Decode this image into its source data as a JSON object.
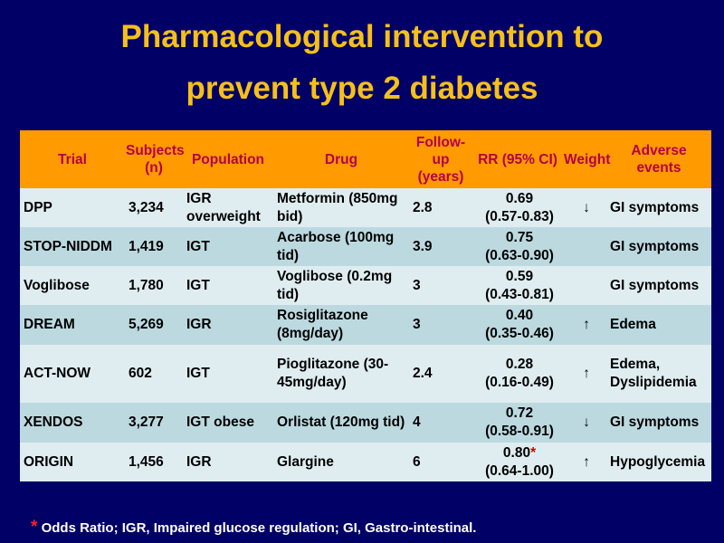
{
  "title": {
    "line1": "Pharmacological intervention to",
    "line2": "prevent type 2 diabetes"
  },
  "table": {
    "headers": {
      "trial": "Trial",
      "subjects": "Subjects (n)",
      "population": "Population",
      "drug": "Drug",
      "followup": "Follow-up (years)",
      "rr": "RR (95% CI)",
      "weight": "Weight",
      "adverse": "Adverse events"
    },
    "rows": [
      {
        "trial": "DPP",
        "subjects": "3,234",
        "population": "IGR overweight",
        "drug": "Metformin (850mg bid)",
        "followup": "2.8",
        "rr": "0.69",
        "rr_marker": "",
        "ci": "(0.57-0.83)",
        "weight": "↓",
        "adverse": "GI symptoms"
      },
      {
        "trial": "STOP-NIDDM",
        "subjects": "1,419",
        "population": "IGT",
        "drug": "Acarbose (100mg tid)",
        "followup": "3.9",
        "rr": "0.75",
        "rr_marker": "",
        "ci": "(0.63-0.90)",
        "weight": "",
        "adverse": "GI symptoms"
      },
      {
        "trial": "Voglibose",
        "subjects": "1,780",
        "population": "IGT",
        "drug": "Voglibose (0.2mg tid)",
        "followup": "3",
        "rr": "0.59",
        "rr_marker": "",
        "ci": "(0.43-0.81)",
        "weight": "",
        "adverse": "GI symptoms"
      },
      {
        "trial": "DREAM",
        "subjects": "5,269",
        "population": "IGR",
        "drug": "Rosiglitazone (8mg/day)",
        "followup": "3",
        "rr": "0.40",
        "rr_marker": "",
        "ci": "(0.35-0.46)",
        "weight": "↑",
        "adverse": "Edema"
      },
      {
        "trial": "ACT-NOW",
        "subjects": "602",
        "population": "IGT",
        "drug": "Pioglitazone (30-45mg/day)",
        "followup": "2.4",
        "rr": "0.28",
        "rr_marker": "",
        "ci": "(0.16-0.49)",
        "weight": "↑",
        "adverse": "Edema, Dyslipidemia"
      },
      {
        "trial": "XENDOS",
        "subjects": "3,277",
        "population": "IGT obese",
        "drug": "Orlistat (120mg tid)",
        "followup": "4",
        "rr": "0.72",
        "rr_marker": "",
        "ci": "(0.58-0.91)",
        "weight": "↓",
        "adverse": "GI symptoms"
      },
      {
        "trial": "ORIGIN",
        "subjects": "1,456",
        "population": "IGR",
        "drug": "Glargine",
        "followup": "6",
        "rr": "0.80",
        "rr_marker": "*",
        "ci": "(0.64-1.00)",
        "weight": "↑",
        "adverse": "Hypoglycemia"
      }
    ]
  },
  "footnote": {
    "marker": "*",
    "text": "Odds Ratio; IGR, Impaired glucose regulation; GI, Gastro-intestinal."
  },
  "colors": {
    "background": "#000066",
    "title": "#f5c01a",
    "header_bg": "#ff9a00",
    "header_text": "#b5004b",
    "row_light": "#e0edf0",
    "row_dark": "#bcd9e0",
    "marker": "#cc0000"
  }
}
